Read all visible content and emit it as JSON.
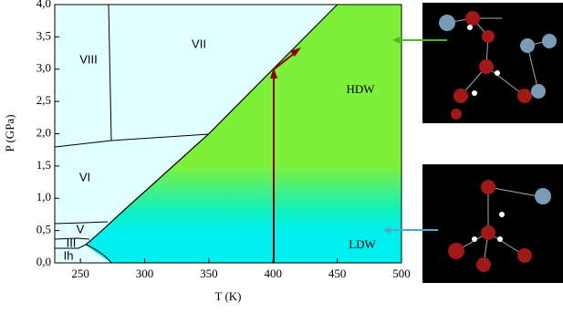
{
  "chart_data": {
    "type": "phase-diagram",
    "xlabel": "T (K)",
    "ylabel": "P (GPa)",
    "xlim": [
      230,
      500
    ],
    "ylim": [
      0,
      4
    ],
    "xticks": [
      250,
      300,
      350,
      400,
      450,
      500
    ],
    "yticks": [
      {
        "value": 0,
        "label": "0,0"
      },
      {
        "value": 0.5,
        "label": "0,5"
      },
      {
        "value": 1,
        "label": "1,0"
      },
      {
        "value": 1.5,
        "label": "1,5"
      },
      {
        "value": 2,
        "label": "2,0"
      },
      {
        "value": 2.5,
        "label": "2,5"
      },
      {
        "value": 3,
        "label": "3,0"
      },
      {
        "value": 3.5,
        "label": "3,5"
      },
      {
        "value": 4,
        "label": "4,0"
      }
    ],
    "annotations": [
      "VIII",
      "VII",
      "VI",
      "V",
      "III",
      "Ih",
      "HDW",
      "LDW"
    ]
  }
}
